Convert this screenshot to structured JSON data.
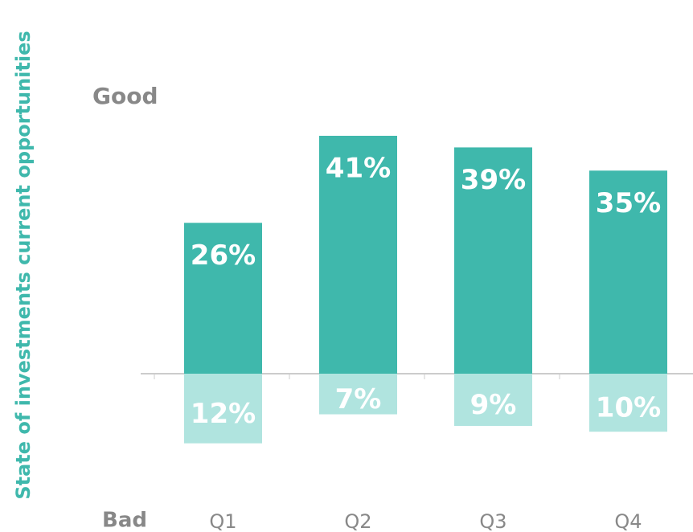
{
  "chart_data": {
    "type": "diverging_bar",
    "y_axis_label": "State of investments current opportunities",
    "top_label": "Good",
    "bottom_label": "Bad",
    "categories": [
      "Q1",
      "Q2",
      "Q3",
      "Q4"
    ],
    "series": [
      {
        "name": "Good",
        "color": "#3fb8ac",
        "direction": "up",
        "values": [
          26,
          41,
          39,
          35
        ],
        "value_labels": [
          "26%",
          "41%",
          "39%",
          "35%"
        ]
      },
      {
        "name": "Bad",
        "color": "#b0e4df",
        "direction": "down",
        "values": [
          12,
          7,
          9,
          10
        ],
        "value_labels": [
          "12%",
          "7%",
          "9%",
          "10%"
        ]
      }
    ]
  }
}
